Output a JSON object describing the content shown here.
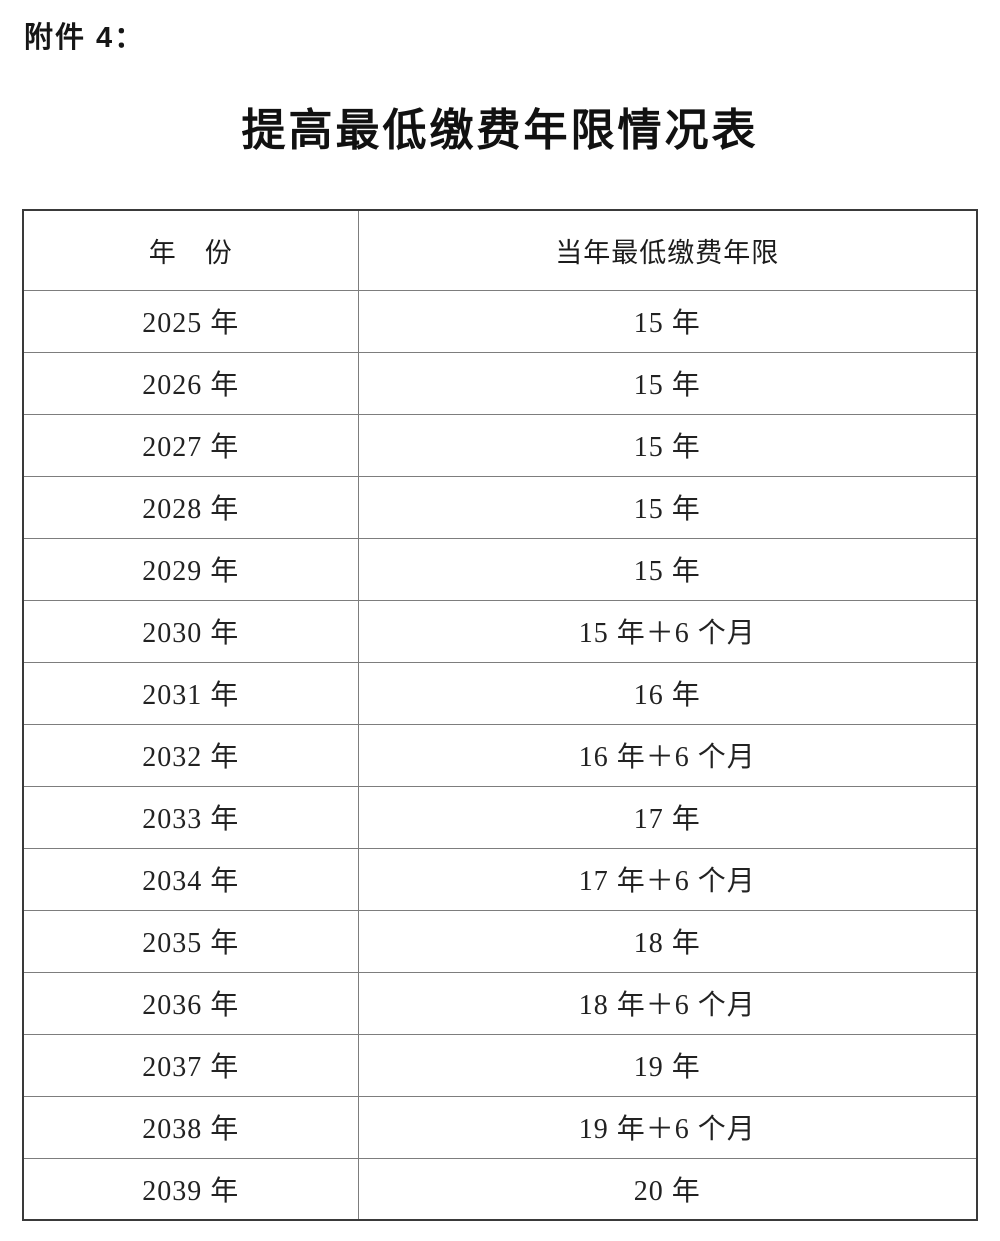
{
  "page": {
    "attachment_label": "附件 4：",
    "title": "提高最低缴费年限情况表"
  },
  "colors": {
    "background": "#ffffff",
    "text": "#1f1f1f",
    "grid_line": "#7d7d7d",
    "outer_border": "#3a3a3a"
  },
  "table": {
    "columns": [
      "年　份",
      "当年最低缴费年限"
    ],
    "rows": [
      {
        "year": "2025 年",
        "value": "15 年"
      },
      {
        "year": "2026 年",
        "value": "15 年"
      },
      {
        "year": "2027 年",
        "value": "15 年"
      },
      {
        "year": "2028 年",
        "value": "15 年"
      },
      {
        "year": "2029 年",
        "value": "15 年"
      },
      {
        "year": "2030 年",
        "value": "15 年＋6 个月"
      },
      {
        "year": "2031 年",
        "value": "16 年"
      },
      {
        "year": "2032 年",
        "value": "16 年＋6 个月"
      },
      {
        "year": "2033 年",
        "value": "17 年"
      },
      {
        "year": "2034 年",
        "value": "17 年＋6 个月"
      },
      {
        "year": "2035 年",
        "value": "18 年"
      },
      {
        "year": "2036 年",
        "value": "18 年＋6 个月"
      },
      {
        "year": "2037 年",
        "value": "19 年"
      },
      {
        "year": "2038 年",
        "value": "19 年＋6 个月"
      },
      {
        "year": "2039 年",
        "value": "20 年"
      }
    ]
  }
}
